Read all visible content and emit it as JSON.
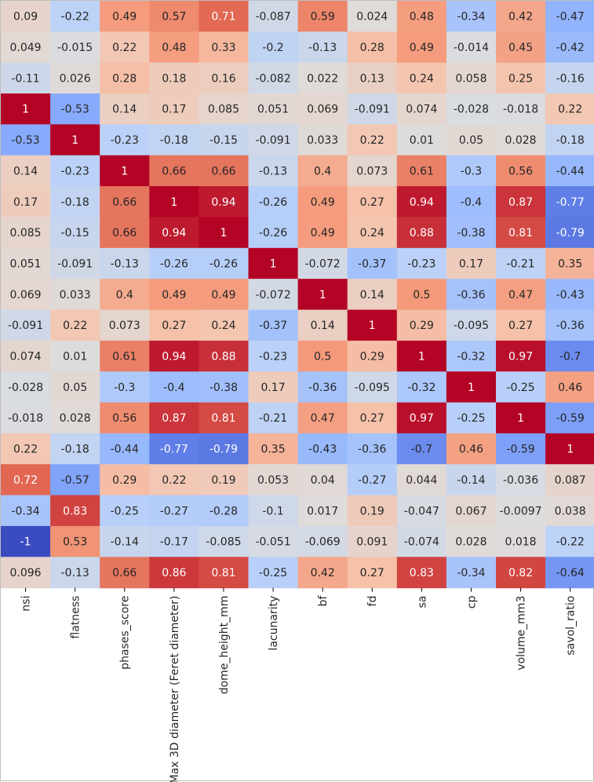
{
  "chart_data": {
    "type": "heatmap",
    "title": "",
    "colormap": "coolwarm",
    "vmin": -1,
    "vmax": 1,
    "columns": [
      "nsi",
      "flatness",
      "phases_score",
      "Max 3D diameter (Feret diameter)",
      "dome_height_mm",
      "lacunarity",
      "bf",
      "fd",
      "sa",
      "cp",
      "volume_mm3",
      "savol_ratio"
    ],
    "rows": [
      [
        "0.09",
        "-0.22",
        "0.49",
        "0.57",
        "0.71",
        "-0.087",
        "0.59",
        "0.024",
        "0.48",
        "-0.34",
        "0.42",
        "-0.47"
      ],
      [
        "0.049",
        "-0.015",
        "0.22",
        "0.48",
        "0.33",
        "-0.2",
        "-0.13",
        "0.28",
        "0.49",
        "-0.014",
        "0.45",
        "-0.42"
      ],
      [
        "-0.11",
        "0.026",
        "0.28",
        "0.18",
        "0.16",
        "-0.082",
        "0.022",
        "0.13",
        "0.24",
        "0.058",
        "0.25",
        "-0.16"
      ],
      [
        "1",
        "-0.53",
        "0.14",
        "0.17",
        "0.085",
        "0.051",
        "0.069",
        "-0.091",
        "0.074",
        "-0.028",
        "-0.018",
        "0.22"
      ],
      [
        "-0.53",
        "1",
        "-0.23",
        "-0.18",
        "-0.15",
        "-0.091",
        "0.033",
        "0.22",
        "0.01",
        "0.05",
        "0.028",
        "-0.18"
      ],
      [
        "0.14",
        "-0.23",
        "1",
        "0.66",
        "0.66",
        "-0.13",
        "0.4",
        "0.073",
        "0.61",
        "-0.3",
        "0.56",
        "-0.44"
      ],
      [
        "0.17",
        "-0.18",
        "0.66",
        "1",
        "0.94",
        "-0.26",
        "0.49",
        "0.27",
        "0.94",
        "-0.4",
        "0.87",
        "-0.77"
      ],
      [
        "0.085",
        "-0.15",
        "0.66",
        "0.94",
        "1",
        "-0.26",
        "0.49",
        "0.24",
        "0.88",
        "-0.38",
        "0.81",
        "-0.79"
      ],
      [
        "0.051",
        "-0.091",
        "-0.13",
        "-0.26",
        "-0.26",
        "1",
        "-0.072",
        "-0.37",
        "-0.23",
        "0.17",
        "-0.21",
        "0.35"
      ],
      [
        "0.069",
        "0.033",
        "0.4",
        "0.49",
        "0.49",
        "-0.072",
        "1",
        "0.14",
        "0.5",
        "-0.36",
        "0.47",
        "-0.43"
      ],
      [
        "-0.091",
        "0.22",
        "0.073",
        "0.27",
        "0.24",
        "-0.37",
        "0.14",
        "1",
        "0.29",
        "-0.095",
        "0.27",
        "-0.36"
      ],
      [
        "0.074",
        "0.01",
        "0.61",
        "0.94",
        "0.88",
        "-0.23",
        "0.5",
        "0.29",
        "1",
        "-0.32",
        "0.97",
        "-0.7"
      ],
      [
        "-0.028",
        "0.05",
        "-0.3",
        "-0.4",
        "-0.38",
        "0.17",
        "-0.36",
        "-0.095",
        "-0.32",
        "1",
        "-0.25",
        "0.46"
      ],
      [
        "-0.018",
        "0.028",
        "0.56",
        "0.87",
        "0.81",
        "-0.21",
        "0.47",
        "0.27",
        "0.97",
        "-0.25",
        "1",
        "-0.59"
      ],
      [
        "0.22",
        "-0.18",
        "-0.44",
        "-0.77",
        "-0.79",
        "0.35",
        "-0.43",
        "-0.36",
        "-0.7",
        "0.46",
        "-0.59",
        "1"
      ],
      [
        "0.72",
        "-0.57",
        "0.29",
        "0.22",
        "0.19",
        "0.053",
        "0.04",
        "-0.27",
        "0.044",
        "-0.14",
        "-0.036",
        "0.087"
      ],
      [
        "-0.34",
        "0.83",
        "-0.25",
        "-0.27",
        "-0.28",
        "-0.1",
        "0.017",
        "0.19",
        "-0.047",
        "0.067",
        "-0.0097",
        "0.038"
      ],
      [
        "-1",
        "0.53",
        "-0.14",
        "-0.17",
        "-0.085",
        "-0.051",
        "-0.069",
        "0.091",
        "-0.074",
        "0.028",
        "0.018",
        "-0.22"
      ],
      [
        "0.096",
        "-0.13",
        "0.66",
        "0.86",
        "0.81",
        "-0.25",
        "0.42",
        "0.27",
        "0.83",
        "-0.34",
        "0.82",
        "-0.64"
      ]
    ]
  }
}
